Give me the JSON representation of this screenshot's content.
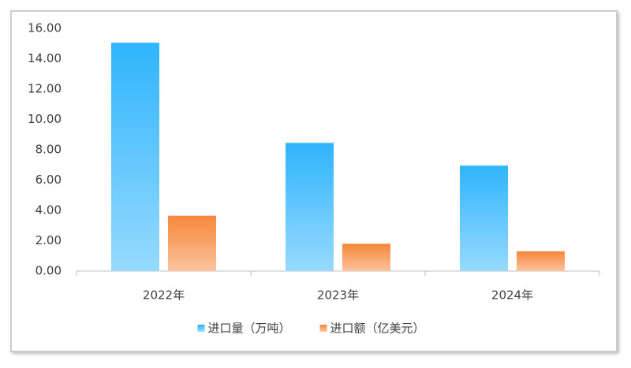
{
  "chart_data": {
    "type": "bar",
    "categories": [
      "2022年",
      "2023年",
      "2024年"
    ],
    "series": [
      {
        "name": "进口量（万吨）",
        "color": "#2fb4fc",
        "values": [
          15.05,
          8.45,
          6.95
        ]
      },
      {
        "name": "进口额（亿美元）",
        "color": "#f7863a",
        "values": [
          3.65,
          1.8,
          1.3
        ]
      }
    ],
    "ylim": [
      0,
      16
    ],
    "yticks": [
      {
        "value": 0,
        "label": "0.00"
      },
      {
        "value": 2,
        "label": "2.00"
      },
      {
        "value": 4,
        "label": "4.00"
      },
      {
        "value": 6,
        "label": "6.00"
      },
      {
        "value": 8,
        "label": "8.00"
      },
      {
        "value": 10,
        "label": "10.00"
      },
      {
        "value": 12,
        "label": "12.00"
      },
      {
        "value": 14,
        "label": "14.00"
      },
      {
        "value": 16,
        "label": "16.00"
      }
    ],
    "grid": false,
    "legend": "bottom"
  }
}
